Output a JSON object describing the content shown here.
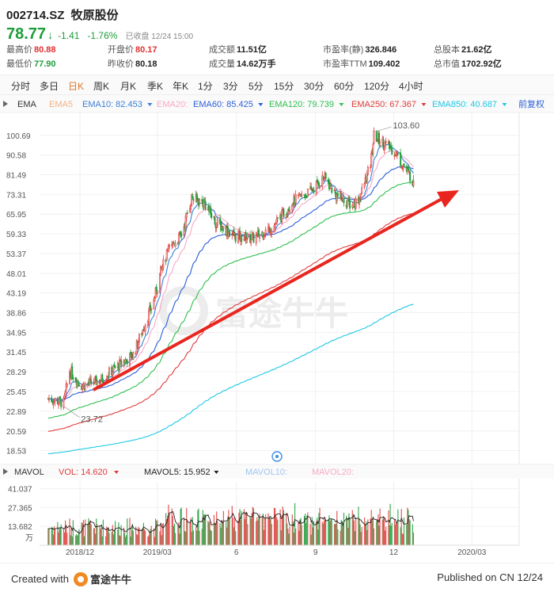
{
  "header": {
    "ticker": "002714.SZ",
    "name": "牧原股份",
    "price": "78.77",
    "change": "-1.41",
    "change_pct": "-1.76%",
    "status": "已收盘 12/24 15:00"
  },
  "stats": [
    {
      "k": "最高价",
      "v": "80.88",
      "tone": "red"
    },
    {
      "k": "开盘价",
      "v": "80.17",
      "tone": "red"
    },
    {
      "k": "成交额",
      "v": "11.51亿",
      "tone": ""
    },
    {
      "k": "市盈率(静)",
      "v": "326.846",
      "tone": ""
    },
    {
      "k": "总股本",
      "v": "21.62亿",
      "tone": ""
    },
    {
      "k": "最低价",
      "v": "77.90",
      "tone": "green"
    },
    {
      "k": "昨收价",
      "v": "80.18",
      "tone": ""
    },
    {
      "k": "成交量",
      "v": "14.62万手",
      "tone": ""
    },
    {
      "k": "市盈率TTM",
      "v": "109.402",
      "tone": ""
    },
    {
      "k": "总市值",
      "v": "1702.92亿",
      "tone": ""
    }
  ],
  "periods": [
    "分时",
    "多日",
    "日K",
    "周K",
    "月K",
    "季K",
    "年K",
    "1分",
    "3分",
    "5分",
    "15分",
    "30分",
    "60分",
    "120分",
    "4小时"
  ],
  "active_period": "日K",
  "indicators": {
    "main": "EMA",
    "items": [
      {
        "label": "EMA5",
        "value": "",
        "color": "#f4b183"
      },
      {
        "label": "EMA10:",
        "value": "82.453",
        "color": "#3a7fd5"
      },
      {
        "label": "EMA20:",
        "value": "",
        "color": "#f7a8c8"
      },
      {
        "label": "EMA60:",
        "value": "85.425",
        "color": "#2b5fd9"
      },
      {
        "label": "EMA120:",
        "value": "79.739",
        "color": "#2fbf4f"
      },
      {
        "label": "EMA250:",
        "value": "67.367",
        "color": "#e03c3c"
      },
      {
        "label": "EMA850:",
        "value": "40.687",
        "color": "#1ec8e6"
      }
    ],
    "adjust": "前复权"
  },
  "vol_indicators": {
    "main": "MAVOL",
    "items": [
      {
        "label": "VOL:",
        "value": "14.620",
        "color": "#e03c3c"
      },
      {
        "label": "MAVOL5:",
        "value": "15.952",
        "color": "#222222"
      },
      {
        "label": "MAVOL10:",
        "value": "",
        "color": "#9fc5f0"
      },
      {
        "label": "MAVOL20:",
        "value": "",
        "color": "#f7a8c8"
      }
    ]
  },
  "watermark": "富途牛牛",
  "footer": {
    "created": "Created with",
    "brand": "富途牛牛",
    "published": "Published on CN 12/24"
  },
  "colors": {
    "up": "#e03c3c",
    "down": "#1e9e3a",
    "accent": "#e0762b"
  },
  "chart_data": {
    "type": "candlestick",
    "price_axis_ticks": [
      100.69,
      90.58,
      81.49,
      73.31,
      65.95,
      59.33,
      53.37,
      48.01,
      43.19,
      38.86,
      34.95,
      31.45,
      28.29,
      25.45,
      22.89,
      20.59,
      18.53
    ],
    "price_scale": "log",
    "ylim": [
      17.5,
      110
    ],
    "annotations": [
      {
        "label": "103.60",
        "value": 103.6
      },
      {
        "label": "23.72",
        "value": 23.72
      }
    ],
    "x_labels": [
      "2018/12",
      "2019/03",
      "6",
      "9",
      "12",
      "2020/03"
    ],
    "volume_axis_ticks": [
      "41.037",
      "27.365",
      "13.682",
      "万"
    ],
    "volume_ylim": [
      0,
      46
    ],
    "ema_latest": {
      "EMA10": 82.453,
      "EMA60": 85.425,
      "EMA120": 79.739,
      "EMA250": 67.367,
      "EMA850": 40.687
    },
    "price_keypoints": [
      {
        "date": "2018/10/25",
        "close": 24.5
      },
      {
        "date": "2018/11/05",
        "close": 24.2
      },
      {
        "date": "2018/11/12",
        "close": 23.9
      },
      {
        "date": "2018/11/19",
        "close": 28.4
      },
      {
        "date": "2018/12/03",
        "close": 26.3
      },
      {
        "date": "2018/12/24",
        "close": 27.0
      },
      {
        "date": "2019/01/14",
        "close": 29.2
      },
      {
        "date": "2019/02/01",
        "close": 31.0
      },
      {
        "date": "2019/02/25",
        "close": 41.5
      },
      {
        "date": "2019/03/05",
        "close": 48.5
      },
      {
        "date": "2019/03/15",
        "close": 55.0
      },
      {
        "date": "2019/03/29",
        "close": 59.0
      },
      {
        "date": "2019/04/10",
        "close": 72.0
      },
      {
        "date": "2019/04/25",
        "close": 70.0
      },
      {
        "date": "2019/05/08",
        "close": 63.0
      },
      {
        "date": "2019/05/31",
        "close": 58.5
      },
      {
        "date": "2019/06/21",
        "close": 58.0
      },
      {
        "date": "2019/07/15",
        "close": 62.0
      },
      {
        "date": "2019/08/05",
        "close": 70.5
      },
      {
        "date": "2019/08/26",
        "close": 74.5
      },
      {
        "date": "2019/09/11",
        "close": 80.5
      },
      {
        "date": "2019/09/25",
        "close": 73.0
      },
      {
        "date": "2019/10/14",
        "close": 69.0
      },
      {
        "date": "2019/10/23",
        "close": 72.5
      },
      {
        "date": "2019/11/04",
        "close": 86.0
      },
      {
        "date": "2019/11/08",
        "close": 100.5
      },
      {
        "date": "2019/11/15",
        "close": 98.0
      },
      {
        "date": "2019/12/02",
        "close": 92.5
      },
      {
        "date": "2019/12/13",
        "close": 85.0
      },
      {
        "date": "2019/12/24",
        "close": 78.77
      }
    ]
  }
}
